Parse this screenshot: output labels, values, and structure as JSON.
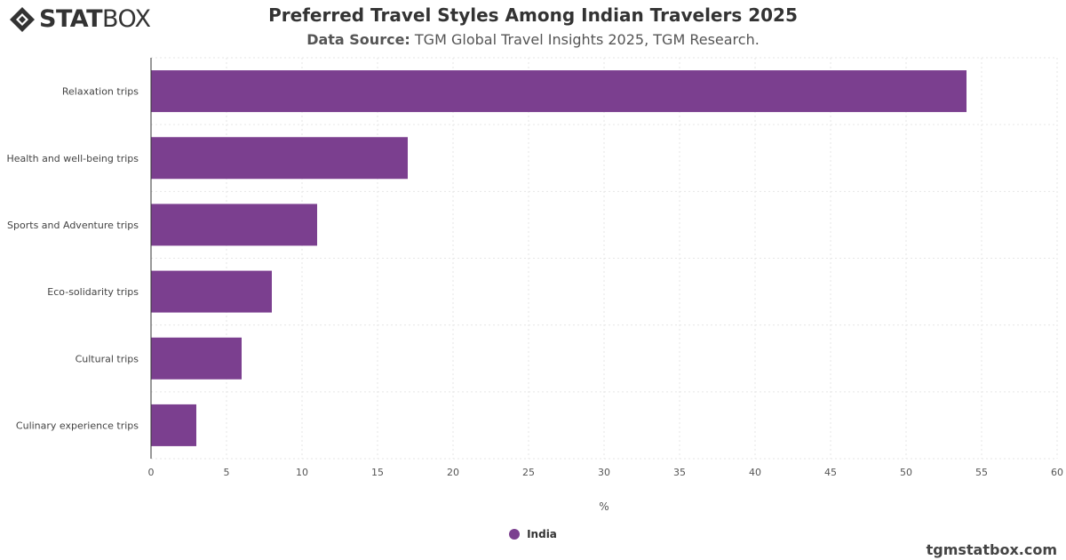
{
  "brand": {
    "logo_bold": "STAT",
    "logo_light": "BOX",
    "website": "tgmstatbox.com"
  },
  "header": {
    "title": "Preferred Travel Styles Among Indian Travelers 2025",
    "source_label": "Data Source:",
    "source_text": "TGM Global Travel Insights 2025, TGM Research."
  },
  "chart_data": {
    "type": "bar",
    "orientation": "horizontal",
    "categories": [
      "Relaxation trips",
      "Health and well-being trips",
      "Sports and Adventure trips",
      "Eco-solidarity trips",
      "Cultural trips",
      "Culinary experience trips"
    ],
    "series": [
      {
        "name": "India",
        "values": [
          54,
          17,
          11,
          8,
          6,
          3
        ],
        "color": "#7b3f8f"
      }
    ],
    "xlabel": "%",
    "ylabel": "",
    "xlim": [
      0,
      60
    ],
    "xticks": [
      0,
      5,
      10,
      15,
      20,
      25,
      30,
      35,
      40,
      45,
      50,
      55,
      60
    ],
    "grid": true,
    "legend": "bottom-center"
  }
}
